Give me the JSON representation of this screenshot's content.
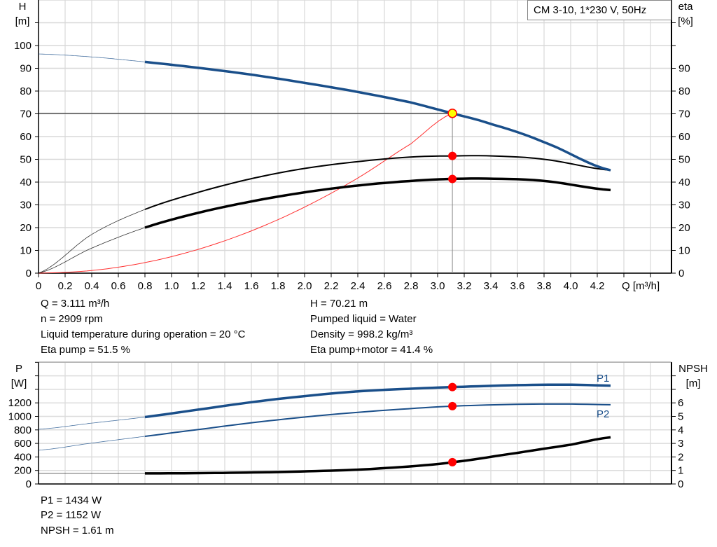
{
  "chart_data": [
    {
      "type": "line",
      "title": "CM 3-10, 1*230 V, 50Hz",
      "xlabel": "Q [m³/h]",
      "ylabel_left": [
        "H",
        "[m]"
      ],
      "ylabel_right": [
        "eta",
        "[%]"
      ],
      "xlim": [
        0,
        4.75
      ],
      "ylim": [
        0,
        120
      ],
      "x_ticks": [
        "0",
        "0.2",
        "0.4",
        "0.6",
        "0.8",
        "1.0",
        "1.2",
        "1.4",
        "1.6",
        "1.8",
        "2.0",
        "2.2",
        "2.4",
        "2.6",
        "2.8",
        "3.0",
        "3.2",
        "3.4",
        "3.6",
        "3.8",
        "4.0",
        "4.2"
      ],
      "y_ticks_left": [
        "0",
        "10",
        "20",
        "30",
        "40",
        "50",
        "60",
        "70",
        "80",
        "90",
        "100"
      ],
      "y_ticks_right": [
        "0",
        "10",
        "20",
        "30",
        "40",
        "50",
        "60",
        "70",
        "80",
        "90"
      ],
      "grid": true,
      "legend": "top-right",
      "series": [
        {
          "id": "H",
          "color": "#1a4f8a",
          "width": 3.5,
          "thin_until": 0.8,
          "x": [
            0,
            0.4,
            0.8,
            1.2,
            1.6,
            2.0,
            2.4,
            2.8,
            3.111,
            3.4,
            3.8,
            4.3
          ],
          "y": [
            96.3,
            95,
            92.8,
            90.2,
            87.2,
            83.6,
            79.6,
            75,
            70.21,
            65.5,
            57.5,
            45.2
          ]
        },
        {
          "id": "eta_pump",
          "color": "#000000",
          "width": 2,
          "thin_until": 0.8,
          "x": [
            0,
            0.4,
            0.8,
            1.2,
            1.6,
            2.0,
            2.4,
            2.8,
            3.111,
            3.4,
            3.8,
            4.3
          ],
          "y": [
            0,
            17,
            28,
            35.5,
            41.5,
            46,
            49,
            51,
            51.5,
            51.5,
            50,
            45.2
          ]
        },
        {
          "id": "eta_total",
          "color": "#000000",
          "width": 3.5,
          "thin_until": 0.8,
          "x": [
            0,
            0.4,
            0.8,
            1.2,
            1.6,
            2.0,
            2.4,
            2.8,
            3.111,
            3.4,
            3.8,
            4.3
          ],
          "y": [
            0,
            11,
            20,
            26.5,
            31.5,
            35.5,
            38.5,
            40.5,
            41.4,
            41.5,
            40.5,
            36.5
          ]
        },
        {
          "id": "system",
          "color": "#ff3030",
          "width": 1,
          "x": [
            0,
            0.4,
            0.8,
            1.2,
            1.6,
            2.0,
            2.4,
            2.8,
            3.111
          ],
          "y": [
            0,
            1.16,
            4.64,
            10.45,
            18.57,
            29.02,
            41.79,
            56.88,
            70.21
          ]
        }
      ],
      "duty_point": {
        "q": 3.111,
        "h": 70.21,
        "eta_pump": 51.5,
        "eta_total": 41.4
      }
    },
    {
      "type": "line",
      "ylabel_left": [
        "P",
        "[W]"
      ],
      "ylabel_right": [
        "NPSH",
        "[m]"
      ],
      "xlim": [
        0,
        4.75
      ],
      "ylim_left": [
        0,
        1800
      ],
      "ylim_right": [
        0,
        9
      ],
      "y_ticks_left": [
        "0",
        "200",
        "400",
        "600",
        "800",
        "1000",
        "1200"
      ],
      "y_ticks_right": [
        "0",
        "1",
        "2",
        "3",
        "4",
        "5",
        "6"
      ],
      "grid": true,
      "series": [
        {
          "name": "P1",
          "color": "#1a4f8a",
          "width": 3.5,
          "thin_until": 0.8,
          "x": [
            0,
            0.4,
            0.8,
            1.2,
            1.6,
            2.0,
            2.4,
            2.8,
            3.111,
            3.6,
            4.0,
            4.3
          ],
          "y": [
            810,
            900,
            990,
            1100,
            1210,
            1300,
            1370,
            1410,
            1434,
            1462,
            1468,
            1455
          ]
        },
        {
          "name": "P2",
          "color": "#1a4f8a",
          "width": 2,
          "thin_until": 0.8,
          "x": [
            0,
            0.4,
            0.8,
            1.2,
            1.6,
            2.0,
            2.4,
            2.8,
            3.111,
            3.6,
            4.0,
            4.3
          ],
          "y": [
            500,
            605,
            705,
            805,
            905,
            990,
            1060,
            1115,
            1152,
            1178,
            1182,
            1172
          ]
        },
        {
          "id": "NPSH",
          "color": "#000000",
          "width": 3.5,
          "thin_until": 0.8,
          "axis": "right",
          "x": [
            0,
            0.4,
            0.8,
            1.2,
            1.6,
            2.0,
            2.4,
            2.8,
            3.111,
            3.6,
            4.0,
            4.3
          ],
          "y": [
            0.78,
            0.78,
            0.78,
            0.8,
            0.85,
            0.93,
            1.06,
            1.3,
            1.61,
            2.3,
            2.9,
            3.45
          ]
        }
      ],
      "duty_point": {
        "q": 3.111,
        "p1": 1434,
        "p2": 1152,
        "npsh": 1.61
      }
    }
  ],
  "info_top": {
    "left": [
      "Q = 3.111 m³/h",
      "n = 2909 rpm",
      "Liquid temperature during operation = 20 °C",
      "Eta pump = 51.5 %"
    ],
    "right": [
      "H = 70.21 m",
      "Pumped liquid = Water",
      "Density = 998.2 kg/m³",
      "Eta pump+motor = 41.4 %"
    ]
  },
  "info_bottom": [
    "P1 = 1434 W",
    "P2 = 1152 W",
    "NPSH = 1.61 m"
  ]
}
